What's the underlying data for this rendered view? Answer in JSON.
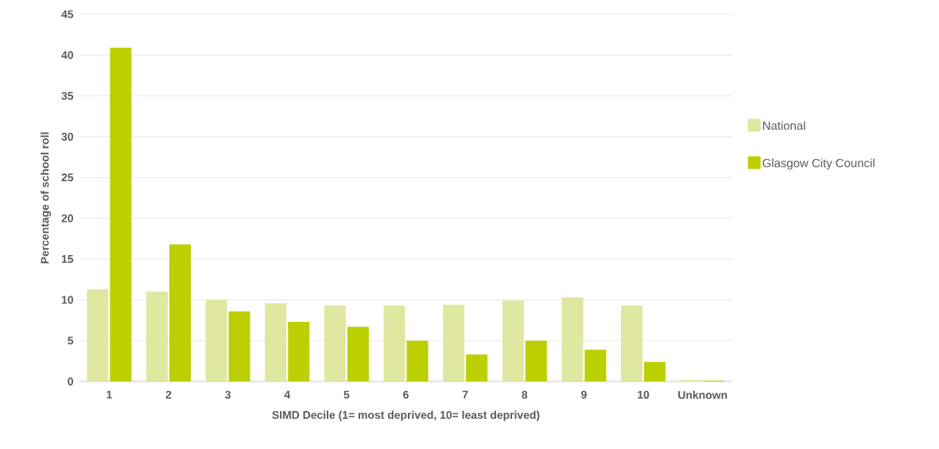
{
  "chart_data": {
    "type": "bar",
    "xlabel": "SIMD Decile (1= most deprived, 10= least deprived)",
    "ylabel": "Percentage of school roll",
    "categories": [
      "1",
      "2",
      "3",
      "4",
      "5",
      "6",
      "7",
      "8",
      "9",
      "10",
      "Unknown"
    ],
    "series": [
      {
        "name": "National",
        "color": "#dfe7a0",
        "values": [
          11.3,
          11.0,
          10.0,
          9.6,
          9.3,
          9.3,
          9.4,
          9.9,
          10.3,
          9.3,
          0.2
        ]
      },
      {
        "name": "Glasgow City Council",
        "color": "#bccf00",
        "values": [
          40.9,
          16.8,
          8.6,
          7.3,
          6.7,
          5.0,
          3.3,
          5.0,
          3.9,
          2.4,
          0.1
        ]
      }
    ],
    "ylim": [
      0,
      45
    ],
    "yticks": [
      0,
      5,
      10,
      15,
      20,
      25,
      30,
      35,
      40,
      45
    ],
    "grid": "y",
    "legend": "right"
  }
}
